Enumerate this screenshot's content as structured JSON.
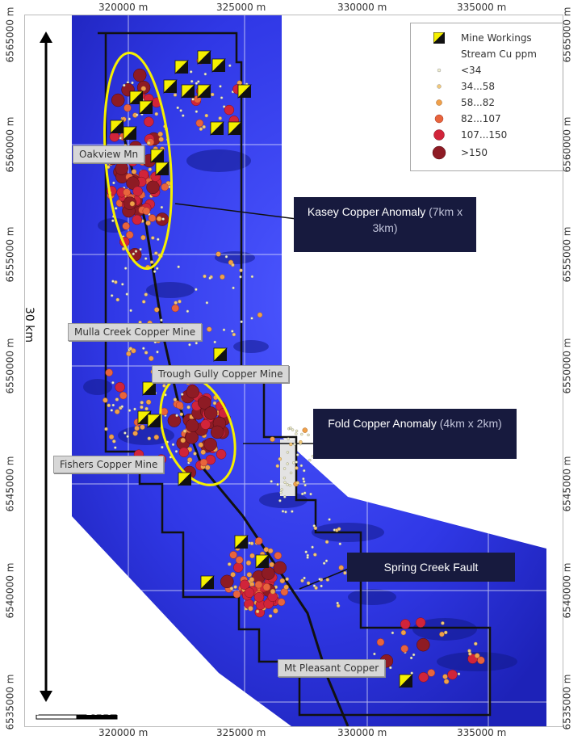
{
  "x_axis_labels": [
    "320000 m",
    "325000 m",
    "330000 m",
    "335000 m"
  ],
  "y_axis_labels": [
    "6565000 m",
    "6560000 m",
    "6555000 m",
    "6550000 m",
    "6545000 m",
    "6540000 m",
    "6535000 m"
  ],
  "legend": {
    "mine_workings": "Mine Workings",
    "stream_title": "Stream Cu ppm",
    "classes": [
      "<34",
      "34...58",
      "58...82",
      "82...107",
      "107...150",
      ">150"
    ],
    "class_colors": [
      "#f1efcf",
      "#f1c87a",
      "#f0a04a",
      "#e8643c",
      "#d1243a",
      "#8e1b24"
    ]
  },
  "places": {
    "oakview": "Oakview Mn",
    "mulla": "Mulla Creek Copper Mine",
    "trough": "Trough Gully Copper Mine",
    "fishers": "Fishers Copper Mine",
    "pleasant": "Mt Pleasant Copper"
  },
  "callouts": {
    "kasey_main": "Kasey Copper Anomaly",
    "kasey_dim": " (7km x 3km)",
    "fold_main": "Fold Copper Anomaly",
    "fold_dim": " (4km x 2km)",
    "fault": "Spring Creek Fault"
  },
  "distance_label": "30 km",
  "scale": {
    "zero": "0",
    "label": ">1000 m"
  },
  "colors": {
    "map_blue": "#2f37e0",
    "highlight_yellow": "#f5f000",
    "callout_bg": "#171a3e"
  }
}
